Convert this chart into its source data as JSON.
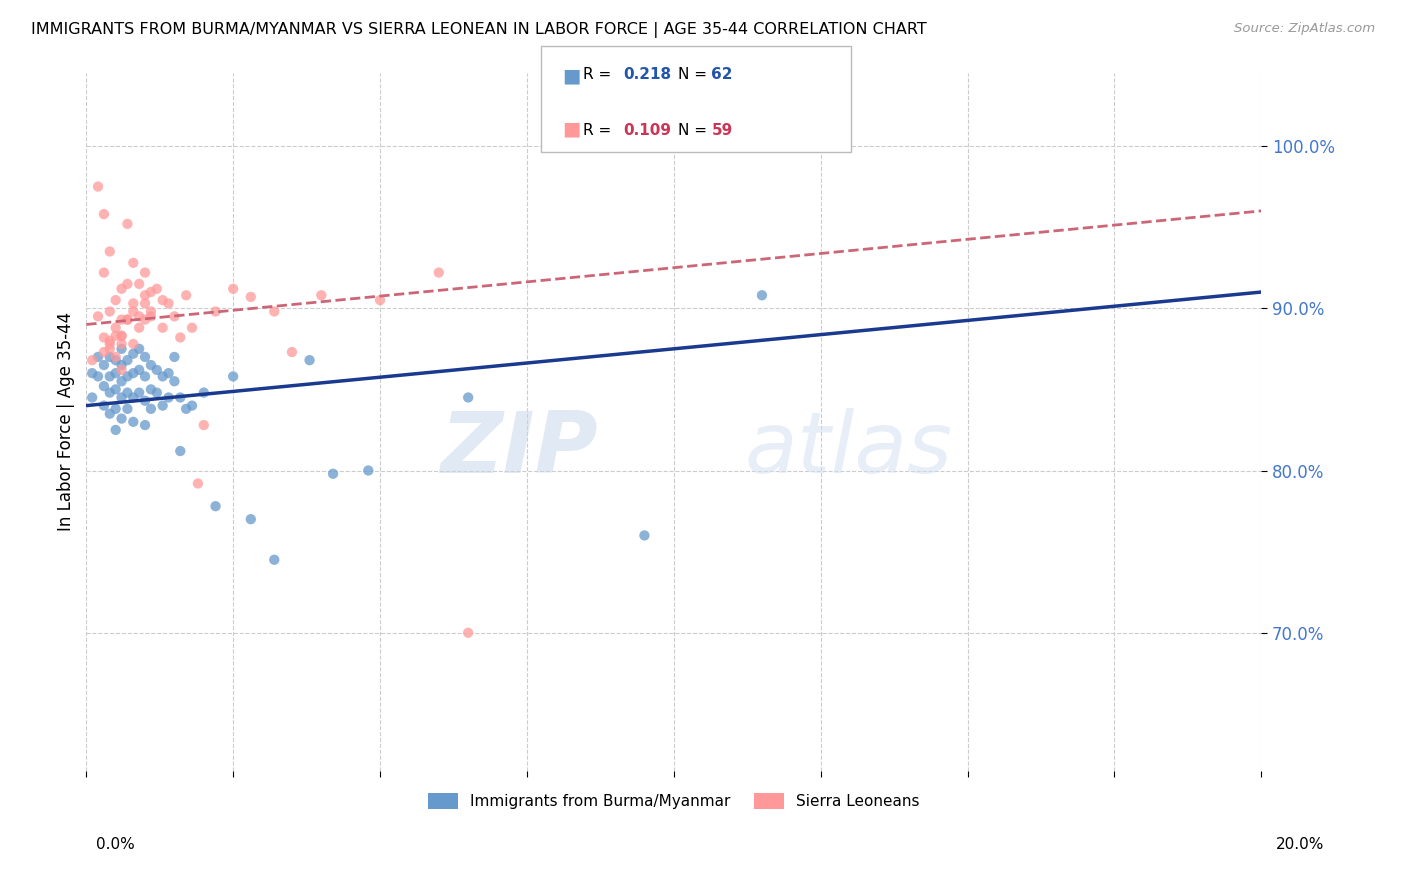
{
  "title": "IMMIGRANTS FROM BURMA/MYANMAR VS SIERRA LEONEAN IN LABOR FORCE | AGE 35-44 CORRELATION CHART",
  "source": "Source: ZipAtlas.com",
  "ylabel": "In Labor Force | Age 35-44",
  "y_ticks": [
    0.7,
    0.8,
    0.9,
    1.0
  ],
  "y_tick_labels": [
    "70.0%",
    "80.0%",
    "90.0%",
    "100.0%"
  ],
  "x_min": 0.0,
  "x_max": 0.2,
  "y_min": 0.615,
  "y_max": 1.045,
  "blue_color": "#6699CC",
  "pink_color": "#FF9999",
  "blue_line_color": "#1A3A8F",
  "pink_line_color": "#CC6677",
  "watermark_zip": "ZIP",
  "watermark_atlas": "atlas",
  "blue_line_x0": 0.0,
  "blue_line_y0": 0.84,
  "blue_line_x1": 0.2,
  "blue_line_y1": 0.91,
  "pink_line_x0": 0.0,
  "pink_line_y0": 0.89,
  "pink_line_x1": 0.2,
  "pink_line_y1": 0.96,
  "blue_scatter_x": [
    0.001,
    0.001,
    0.002,
    0.002,
    0.003,
    0.003,
    0.003,
    0.004,
    0.004,
    0.004,
    0.004,
    0.005,
    0.005,
    0.005,
    0.005,
    0.005,
    0.006,
    0.006,
    0.006,
    0.006,
    0.006,
    0.007,
    0.007,
    0.007,
    0.007,
    0.008,
    0.008,
    0.008,
    0.008,
    0.009,
    0.009,
    0.009,
    0.01,
    0.01,
    0.01,
    0.01,
    0.011,
    0.011,
    0.011,
    0.012,
    0.012,
    0.013,
    0.013,
    0.014,
    0.014,
    0.015,
    0.015,
    0.016,
    0.016,
    0.017,
    0.018,
    0.02,
    0.022,
    0.025,
    0.028,
    0.032,
    0.038,
    0.042,
    0.048,
    0.065,
    0.095,
    0.115
  ],
  "blue_scatter_y": [
    0.86,
    0.845,
    0.87,
    0.858,
    0.865,
    0.852,
    0.84,
    0.87,
    0.858,
    0.848,
    0.835,
    0.868,
    0.86,
    0.85,
    0.838,
    0.825,
    0.875,
    0.865,
    0.855,
    0.845,
    0.832,
    0.868,
    0.858,
    0.848,
    0.838,
    0.872,
    0.86,
    0.845,
    0.83,
    0.875,
    0.862,
    0.848,
    0.87,
    0.858,
    0.843,
    0.828,
    0.865,
    0.85,
    0.838,
    0.862,
    0.848,
    0.858,
    0.84,
    0.86,
    0.845,
    0.87,
    0.855,
    0.845,
    0.812,
    0.838,
    0.84,
    0.848,
    0.778,
    0.858,
    0.77,
    0.745,
    0.868,
    0.798,
    0.8,
    0.845,
    0.76,
    0.908
  ],
  "pink_scatter_x": [
    0.001,
    0.002,
    0.002,
    0.003,
    0.003,
    0.003,
    0.004,
    0.004,
    0.004,
    0.005,
    0.005,
    0.005,
    0.006,
    0.006,
    0.006,
    0.006,
    0.007,
    0.007,
    0.007,
    0.008,
    0.008,
    0.008,
    0.009,
    0.009,
    0.01,
    0.01,
    0.01,
    0.011,
    0.011,
    0.012,
    0.013,
    0.013,
    0.014,
    0.015,
    0.016,
    0.017,
    0.018,
    0.019,
    0.02,
    0.022,
    0.025,
    0.028,
    0.032,
    0.035,
    0.04,
    0.05,
    0.06,
    0.065,
    0.003,
    0.004,
    0.005,
    0.006,
    0.007,
    0.008,
    0.009,
    0.01,
    0.011,
    0.004,
    0.006
  ],
  "pink_scatter_y": [
    0.868,
    0.975,
    0.895,
    0.958,
    0.922,
    0.882,
    0.935,
    0.898,
    0.875,
    0.905,
    0.888,
    0.87,
    0.912,
    0.893,
    0.878,
    0.862,
    0.952,
    0.915,
    0.893,
    0.928,
    0.903,
    0.878,
    0.915,
    0.895,
    0.922,
    0.908,
    0.893,
    0.91,
    0.895,
    0.912,
    0.905,
    0.888,
    0.903,
    0.895,
    0.882,
    0.908,
    0.888,
    0.792,
    0.828,
    0.898,
    0.912,
    0.907,
    0.898,
    0.873,
    0.908,
    0.905,
    0.922,
    0.7,
    0.873,
    0.88,
    0.883,
    0.883,
    0.893,
    0.898,
    0.888,
    0.903,
    0.898,
    0.878,
    0.883
  ]
}
